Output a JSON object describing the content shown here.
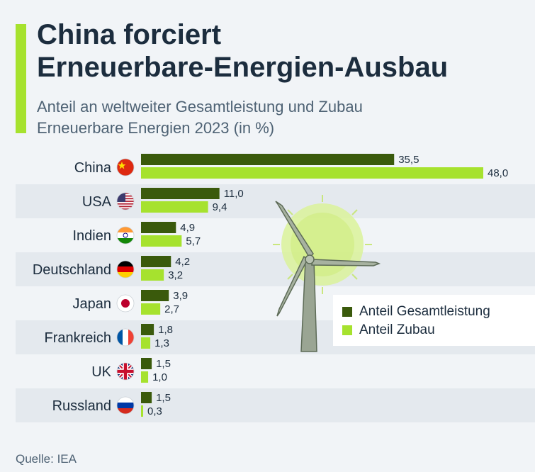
{
  "header": {
    "title_line1": "China forciert",
    "title_line2": "Erneuerbare-Energien-Ausbau",
    "subtitle_line1": "Anteil an weltweiter Gesamtleistung und Zubau",
    "subtitle_line2": "Erneuerbare Energien 2023 (in %)"
  },
  "source": "Quelle: IEA",
  "colors": {
    "accent": "#a6e22e",
    "gesamt": "#3a5a0c",
    "zubau": "#a6e22e",
    "stripe": "#e4e9ee",
    "text": "#1c2d3e"
  },
  "legend": [
    {
      "label": "Anteil Gesamtleistung",
      "color": "#3a5a0c"
    },
    {
      "label": "Anteil Zubau",
      "color": "#a6e22e"
    }
  ],
  "chart_data": {
    "type": "bar",
    "orientation": "horizontal",
    "categories": [
      "China",
      "USA",
      "Indien",
      "Deutschland",
      "Japan",
      "Frankreich",
      "UK",
      "Russland"
    ],
    "flags": [
      "flag-china-icon",
      "flag-usa-icon",
      "flag-india-icon",
      "flag-germany-icon",
      "flag-japan-icon",
      "flag-france-icon",
      "flag-uk-icon",
      "flag-russia-icon"
    ],
    "series": [
      {
        "name": "Anteil Gesamtleistung",
        "values": [
          35.5,
          11.0,
          4.9,
          4.2,
          3.9,
          1.8,
          1.5,
          1.5
        ],
        "labels": [
          "35,5",
          "11,0",
          "4,9",
          "4,2",
          "3,9",
          "1,8",
          "1,5",
          "1,5"
        ]
      },
      {
        "name": "Anteil Zubau",
        "values": [
          48.0,
          9.4,
          5.7,
          3.2,
          2.7,
          1.3,
          1.0,
          0.3
        ],
        "labels": [
          "48,0",
          "9,4",
          "5,7",
          "3,2",
          "2,7",
          "1,3",
          "1,0",
          "0,3"
        ]
      }
    ],
    "xlim": [
      0,
      48
    ],
    "legend_position": "bottom-right",
    "grid": false
  }
}
